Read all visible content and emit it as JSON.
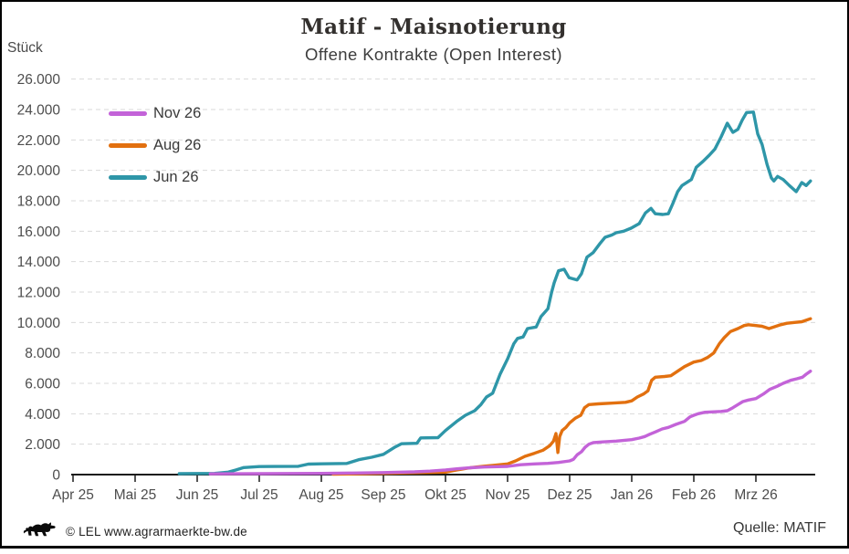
{
  "header": {
    "title": "Matif - Maisnotierung",
    "subtitle": "Offene Kontrakte (Open Interest)"
  },
  "footer": {
    "copyright": "© LEL www.agrarmaerkte-bw.de",
    "source": "Quelle: MATIF",
    "logo_icon": "baden-wuerttemberg-lion"
  },
  "chart_data": {
    "type": "line",
    "title": "Matif - Maisnotierung",
    "subtitle": "Offene Kontrakte (Open Interest)",
    "ylabel": "Stück",
    "xlabel": "",
    "ylim": [
      0,
      26000
    ],
    "ytick_step": 2000,
    "ytick_labels": [
      "0",
      "2.000",
      "4.000",
      "6.000",
      "8.000",
      "10.000",
      "12.000",
      "14.000",
      "16.000",
      "18.000",
      "20.000",
      "22.000",
      "24.000",
      "26.000"
    ],
    "xtick_labels": [
      "Apr 25",
      "Mai 25",
      "Jun 25",
      "Jul 25",
      "Aug 25",
      "Sep 25",
      "Okt 25",
      "Nov 25",
      "Dez 25",
      "Jan 26",
      "Feb 26",
      "Mrz 26"
    ],
    "x_unit": "months since 1 Apr 2025 (0 = Apr 25 ... 11 = Mrz 26)",
    "grid": "horizontal-dashed",
    "legend_position": "top-left",
    "colors": {
      "grid": "#d9d9d9",
      "axis": "#1a1a1a",
      "tick_text": "#4d4d4d"
    },
    "series": [
      {
        "name": "Nov 26",
        "color": "#c363d8",
        "points": [
          [
            2.21,
            50
          ],
          [
            2.6,
            55
          ],
          [
            3,
            60
          ],
          [
            3.5,
            70
          ],
          [
            4,
            80
          ],
          [
            4.5,
            100
          ],
          [
            5,
            130
          ],
          [
            5.5,
            180
          ],
          [
            5.75,
            230
          ],
          [
            6,
            300
          ],
          [
            6.18,
            380
          ],
          [
            6.4,
            450
          ],
          [
            6.62,
            500
          ],
          [
            6.84,
            520
          ],
          [
            7,
            540
          ],
          [
            7.21,
            650
          ],
          [
            7.43,
            700
          ],
          [
            7.65,
            740
          ],
          [
            7.82,
            800
          ],
          [
            8,
            900
          ],
          [
            8.06,
            1000
          ],
          [
            8.12,
            1300
          ],
          [
            8.19,
            1500
          ],
          [
            8.25,
            1800
          ],
          [
            8.31,
            2000
          ],
          [
            8.38,
            2100
          ],
          [
            8.53,
            2150
          ],
          [
            8.75,
            2200
          ],
          [
            9,
            2300
          ],
          [
            9.12,
            2400
          ],
          [
            9.21,
            2500
          ],
          [
            9.29,
            2650
          ],
          [
            9.38,
            2800
          ],
          [
            9.49,
            3000
          ],
          [
            9.59,
            3100
          ],
          [
            9.71,
            3300
          ],
          [
            9.85,
            3500
          ],
          [
            9.94,
            3800
          ],
          [
            10,
            3900
          ],
          [
            10.07,
            4000
          ],
          [
            10.18,
            4100
          ],
          [
            10.44,
            4150
          ],
          [
            10.54,
            4200
          ],
          [
            10.63,
            4400
          ],
          [
            10.71,
            4600
          ],
          [
            10.79,
            4800
          ],
          [
            10.88,
            4900
          ],
          [
            11,
            5000
          ],
          [
            11.12,
            5300
          ],
          [
            11.22,
            5600
          ],
          [
            11.34,
            5800
          ],
          [
            11.44,
            6000
          ],
          [
            11.56,
            6200
          ],
          [
            11.66,
            6300
          ],
          [
            11.75,
            6400
          ],
          [
            11.81,
            6600
          ],
          [
            11.88,
            6800
          ]
        ]
      },
      {
        "name": "Aug 26",
        "color": "#e2700f",
        "points": [
          [
            4.19,
            30
          ],
          [
            4.71,
            60
          ],
          [
            5,
            80
          ],
          [
            5.44,
            120
          ],
          [
            6,
            160
          ],
          [
            6.18,
            300
          ],
          [
            6.4,
            450
          ],
          [
            6.62,
            550
          ],
          [
            6.76,
            600
          ],
          [
            7,
            700
          ],
          [
            7.13,
            900
          ],
          [
            7.28,
            1200
          ],
          [
            7.43,
            1400
          ],
          [
            7.57,
            1600
          ],
          [
            7.68,
            1900
          ],
          [
            7.74,
            2200
          ],
          [
            7.78,
            2700
          ],
          [
            7.81,
            1450
          ],
          [
            7.84,
            2500
          ],
          [
            7.88,
            2900
          ],
          [
            7.94,
            3100
          ],
          [
            8,
            3400
          ],
          [
            8.09,
            3700
          ],
          [
            8.18,
            3900
          ],
          [
            8.24,
            4400
          ],
          [
            8.31,
            4600
          ],
          [
            8.46,
            4650
          ],
          [
            8.68,
            4700
          ],
          [
            8.9,
            4750
          ],
          [
            9,
            4850
          ],
          [
            9.09,
            5100
          ],
          [
            9.19,
            5300
          ],
          [
            9.26,
            5500
          ],
          [
            9.32,
            6200
          ],
          [
            9.38,
            6400
          ],
          [
            9.53,
            6450
          ],
          [
            9.63,
            6500
          ],
          [
            9.74,
            6800
          ],
          [
            9.85,
            7100
          ],
          [
            10,
            7400
          ],
          [
            10.12,
            7500
          ],
          [
            10.22,
            7700
          ],
          [
            10.32,
            8000
          ],
          [
            10.41,
            8600
          ],
          [
            10.49,
            9000
          ],
          [
            10.59,
            9400
          ],
          [
            10.71,
            9600
          ],
          [
            10.81,
            9800
          ],
          [
            10.88,
            9850
          ],
          [
            11,
            9800
          ],
          [
            11.1,
            9750
          ],
          [
            11.21,
            9600
          ],
          [
            11.29,
            9700
          ],
          [
            11.4,
            9850
          ],
          [
            11.5,
            9950
          ],
          [
            11.62,
            10000
          ],
          [
            11.74,
            10050
          ],
          [
            11.88,
            10250
          ]
        ]
      },
      {
        "name": "Jun 26",
        "color": "#2e96a8",
        "points": [
          [
            1.71,
            60
          ],
          [
            2,
            70
          ],
          [
            2.28,
            80
          ],
          [
            2.5,
            160
          ],
          [
            2.62,
            300
          ],
          [
            2.75,
            460
          ],
          [
            3,
            530
          ],
          [
            3.24,
            535
          ],
          [
            3.63,
            545
          ],
          [
            3.79,
            690
          ],
          [
            4,
            710
          ],
          [
            4.41,
            730
          ],
          [
            4.6,
            980
          ],
          [
            4.81,
            1140
          ],
          [
            5,
            1330
          ],
          [
            5.19,
            1820
          ],
          [
            5.29,
            2030
          ],
          [
            5.54,
            2060
          ],
          [
            5.6,
            2410
          ],
          [
            5.88,
            2430
          ],
          [
            6,
            2900
          ],
          [
            6.18,
            3490
          ],
          [
            6.32,
            3900
          ],
          [
            6.47,
            4200
          ],
          [
            6.57,
            4600
          ],
          [
            6.66,
            5100
          ],
          [
            6.76,
            5350
          ],
          [
            6.88,
            6600
          ],
          [
            7,
            7600
          ],
          [
            7.1,
            8600
          ],
          [
            7.16,
            8950
          ],
          [
            7.25,
            9050
          ],
          [
            7.32,
            9600
          ],
          [
            7.46,
            9700
          ],
          [
            7.54,
            10400
          ],
          [
            7.65,
            10900
          ],
          [
            7.71,
            12000
          ],
          [
            7.75,
            12600
          ],
          [
            7.82,
            13400
          ],
          [
            7.91,
            13500
          ],
          [
            7.99,
            12950
          ],
          [
            8.12,
            12800
          ],
          [
            8.19,
            13200
          ],
          [
            8.28,
            14300
          ],
          [
            8.38,
            14600
          ],
          [
            8.49,
            15200
          ],
          [
            8.57,
            15600
          ],
          [
            8.68,
            15750
          ],
          [
            8.75,
            15900
          ],
          [
            8.87,
            16000
          ],
          [
            8.99,
            16200
          ],
          [
            9.12,
            16500
          ],
          [
            9.22,
            17200
          ],
          [
            9.31,
            17500
          ],
          [
            9.38,
            17150
          ],
          [
            9.5,
            17100
          ],
          [
            9.59,
            17150
          ],
          [
            9.66,
            17800
          ],
          [
            9.74,
            18600
          ],
          [
            9.81,
            19000
          ],
          [
            9.96,
            19400
          ],
          [
            10.04,
            20200
          ],
          [
            10.15,
            20600
          ],
          [
            10.25,
            21000
          ],
          [
            10.34,
            21400
          ],
          [
            10.44,
            22200
          ],
          [
            10.54,
            23100
          ],
          [
            10.63,
            22500
          ],
          [
            10.71,
            22700
          ],
          [
            10.78,
            23300
          ],
          [
            10.85,
            23800
          ],
          [
            10.96,
            23830
          ],
          [
            11.03,
            22400
          ],
          [
            11.1,
            21700
          ],
          [
            11.18,
            20400
          ],
          [
            11.25,
            19500
          ],
          [
            11.29,
            19300
          ],
          [
            11.35,
            19600
          ],
          [
            11.44,
            19400
          ],
          [
            11.54,
            19000
          ],
          [
            11.65,
            18600
          ],
          [
            11.74,
            19200
          ],
          [
            11.81,
            19000
          ],
          [
            11.88,
            19300
          ]
        ]
      }
    ]
  }
}
